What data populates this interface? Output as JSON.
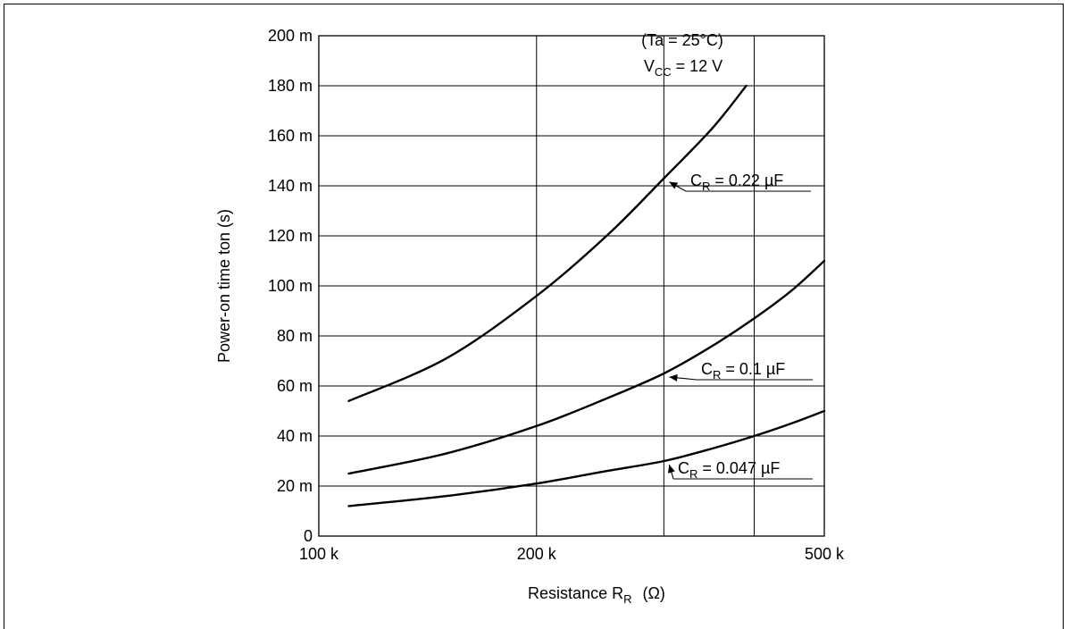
{
  "chart_data": {
    "type": "line",
    "title": "",
    "xlabel_main": "Resistance  R",
    "xlabel_sub": "R",
    "xlabel_unit": "(Ω)",
    "ylabel": "Power-on time  ton  (s)",
    "x_scale": "log",
    "xlim": [
      100000,
      500000
    ],
    "ylim": [
      0,
      0.2
    ],
    "x_ticks": [
      {
        "value": 100000,
        "label": "100 k"
      },
      {
        "value": 200000,
        "label": "200 k"
      },
      {
        "value": 500000,
        "label": "500 k"
      }
    ],
    "x_gridlines": [
      100000,
      200000,
      300000,
      400000,
      500000
    ],
    "y_ticks": [
      {
        "value": 0,
        "label": "0"
      },
      {
        "value": 0.02,
        "label": "20 m"
      },
      {
        "value": 0.04,
        "label": "40 m"
      },
      {
        "value": 0.06,
        "label": "60 m"
      },
      {
        "value": 0.08,
        "label": "80 m"
      },
      {
        "value": 0.1,
        "label": "100 m"
      },
      {
        "value": 0.12,
        "label": "120 m"
      },
      {
        "value": 0.14,
        "label": "140 m"
      },
      {
        "value": 0.16,
        "label": "160 m"
      },
      {
        "value": 0.18,
        "label": "180 m"
      },
      {
        "value": 0.2,
        "label": "200 m"
      }
    ],
    "grid": true,
    "conditions": {
      "line1": "(Ta = 25°C)",
      "line2_main": "V",
      "line2_sub": "CC",
      "line2_rest": " = 12 V"
    },
    "series": [
      {
        "name_main": "C",
        "name_sub": "R",
        "name_rest": " = 0.22 µF",
        "x": [
          110000,
          150000,
          200000,
          250000,
          300000,
          350000,
          390000
        ],
        "y": [
          0.054,
          0.071,
          0.096,
          0.12,
          0.143,
          0.163,
          0.18
        ]
      },
      {
        "name_main": "C",
        "name_sub": "R",
        "name_rest": " = 0.1 µF",
        "x": [
          110000,
          150000,
          200000,
          250000,
          300000,
          350000,
          400000,
          450000,
          500000
        ],
        "y": [
          0.025,
          0.033,
          0.044,
          0.055,
          0.065,
          0.076,
          0.087,
          0.098,
          0.11
        ]
      },
      {
        "name_main": "C",
        "name_sub": "R",
        "name_rest": " = 0.047 µF",
        "x": [
          110000,
          150000,
          200000,
          250000,
          300000,
          350000,
          400000,
          450000,
          500000
        ],
        "y": [
          0.012,
          0.016,
          0.021,
          0.026,
          0.03,
          0.035,
          0.04,
          0.045,
          0.05
        ]
      }
    ]
  }
}
